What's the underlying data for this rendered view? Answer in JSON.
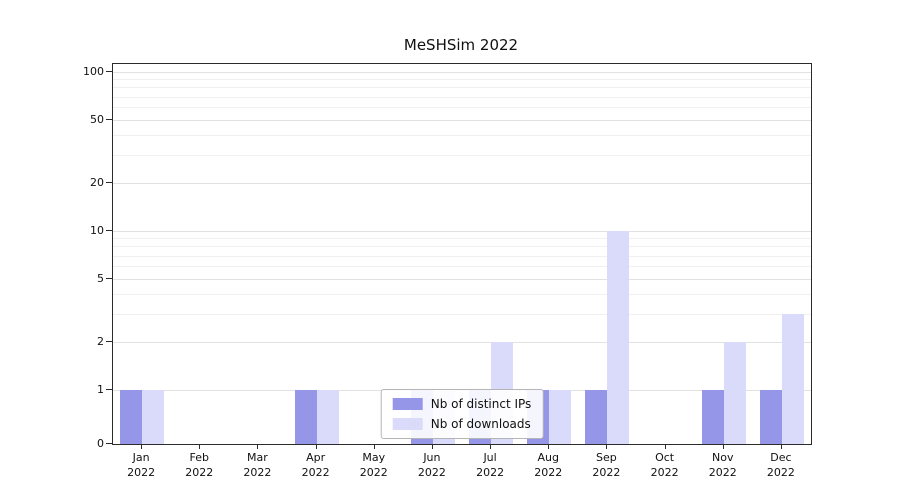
{
  "chart_data": {
    "type": "bar",
    "title": "MeSHSim 2022",
    "categories": [
      "Jan",
      "Feb",
      "Mar",
      "Apr",
      "May",
      "Jun",
      "Jul",
      "Aug",
      "Sep",
      "Oct",
      "Nov",
      "Dec"
    ],
    "category_year": "2022",
    "series": [
      {
        "name": "Nb of distinct IPs",
        "color": "#9596e8",
        "values": [
          1,
          0,
          0,
          1,
          0,
          1,
          1,
          1,
          1,
          0,
          1,
          1
        ]
      },
      {
        "name": "Nb of downloads",
        "color": "#dadbfa",
        "values": [
          1,
          0,
          0,
          1,
          0,
          1,
          2,
          1,
          10,
          0,
          2,
          3
        ]
      }
    ],
    "y_ticks": [
      0,
      1,
      2,
      5,
      10,
      20,
      50,
      100
    ],
    "y_minor_ticks": [
      3,
      4,
      6,
      7,
      8,
      9,
      30,
      40,
      60,
      70,
      80,
      90
    ],
    "ylim": [
      0,
      100
    ],
    "scale": "symlog",
    "grid": true,
    "legend_position": "lower center inside",
    "spine_color": "#2b2b2b"
  }
}
